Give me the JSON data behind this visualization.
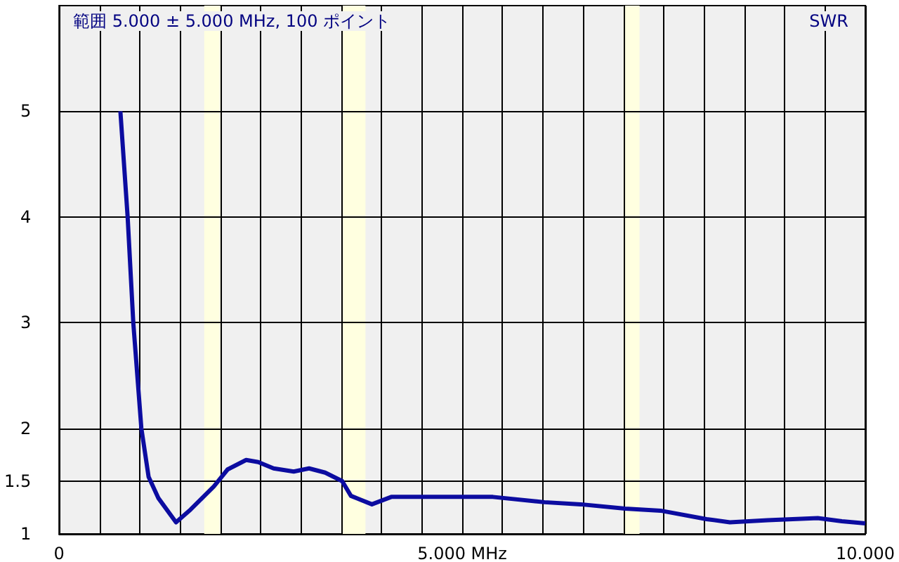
{
  "chart_data": {
    "type": "line",
    "ylabel": "SWR",
    "annotations": [
      "範囲 5.000 ± 5.000 MHz, 100 ポイント"
    ],
    "x": [
      0.76,
      0.85,
      0.92,
      1.02,
      1.11,
      1.23,
      1.45,
      1.63,
      1.92,
      2.09,
      2.32,
      2.47,
      2.66,
      2.91,
      3.1,
      3.3,
      3.51,
      3.62,
      3.88,
      4.12,
      4.34,
      4.86,
      5.38,
      6.02,
      6.47,
      7.02,
      7.46,
      8.03,
      8.32,
      8.79,
      9.41,
      9.71,
      10.0
    ],
    "series": [
      {
        "color": "#0c0ca0",
        "values": [
          5.0,
          4.0,
          3.0,
          2.0,
          1.54,
          1.34,
          1.11,
          1.23,
          1.45,
          1.61,
          1.7,
          1.68,
          1.62,
          1.59,
          1.62,
          1.58,
          1.5,
          1.36,
          1.28,
          1.35,
          1.35,
          1.35,
          1.35,
          1.3,
          1.28,
          1.24,
          1.22,
          1.14,
          1.11,
          1.13,
          1.15,
          1.12,
          1.1
        ]
      }
    ],
    "xlim": [
      0,
      10
    ],
    "xticks": [
      0,
      {
        "value": 0.5,
        "label": null
      },
      {
        "value": 1,
        "label": null
      },
      {
        "value": 1.5,
        "label": null
      },
      {
        "value": 2,
        "label": null
      },
      {
        "value": 2.5,
        "label": null
      },
      {
        "value": 3,
        "label": null
      },
      {
        "value": 3.5,
        "label": null
      },
      {
        "value": 4,
        "label": null
      },
      {
        "value": 4.5,
        "label": null
      },
      {
        "value": 5,
        "label": "5.000 MHz"
      },
      {
        "value": 5.5,
        "label": null
      },
      {
        "value": 6,
        "label": null
      },
      {
        "value": 6.5,
        "label": null
      },
      {
        "value": 7,
        "label": null
      },
      {
        "value": 7.5,
        "label": null
      },
      {
        "value": 8,
        "label": null
      },
      {
        "value": 8.5,
        "label": null
      },
      {
        "value": 9,
        "label": null
      },
      {
        "value": 9.5,
        "label": null
      },
      {
        "value": 10,
        "label": "10.000"
      }
    ],
    "ylim": [
      1,
      6
    ],
    "yticks": [
      1,
      1.5,
      2,
      3,
      4,
      5
    ],
    "bands": [
      {
        "axis": "x",
        "from": 1.8,
        "to": 2.0,
        "color": "#ffffe0"
      },
      {
        "axis": "x",
        "from": 3.5,
        "to": 3.8,
        "color": "#ffffe0"
      },
      {
        "axis": "x",
        "from": 7.0,
        "to": 7.2,
        "color": "#ffffe0"
      }
    ],
    "grid": true,
    "marker": "none",
    "line_style": "solid"
  }
}
